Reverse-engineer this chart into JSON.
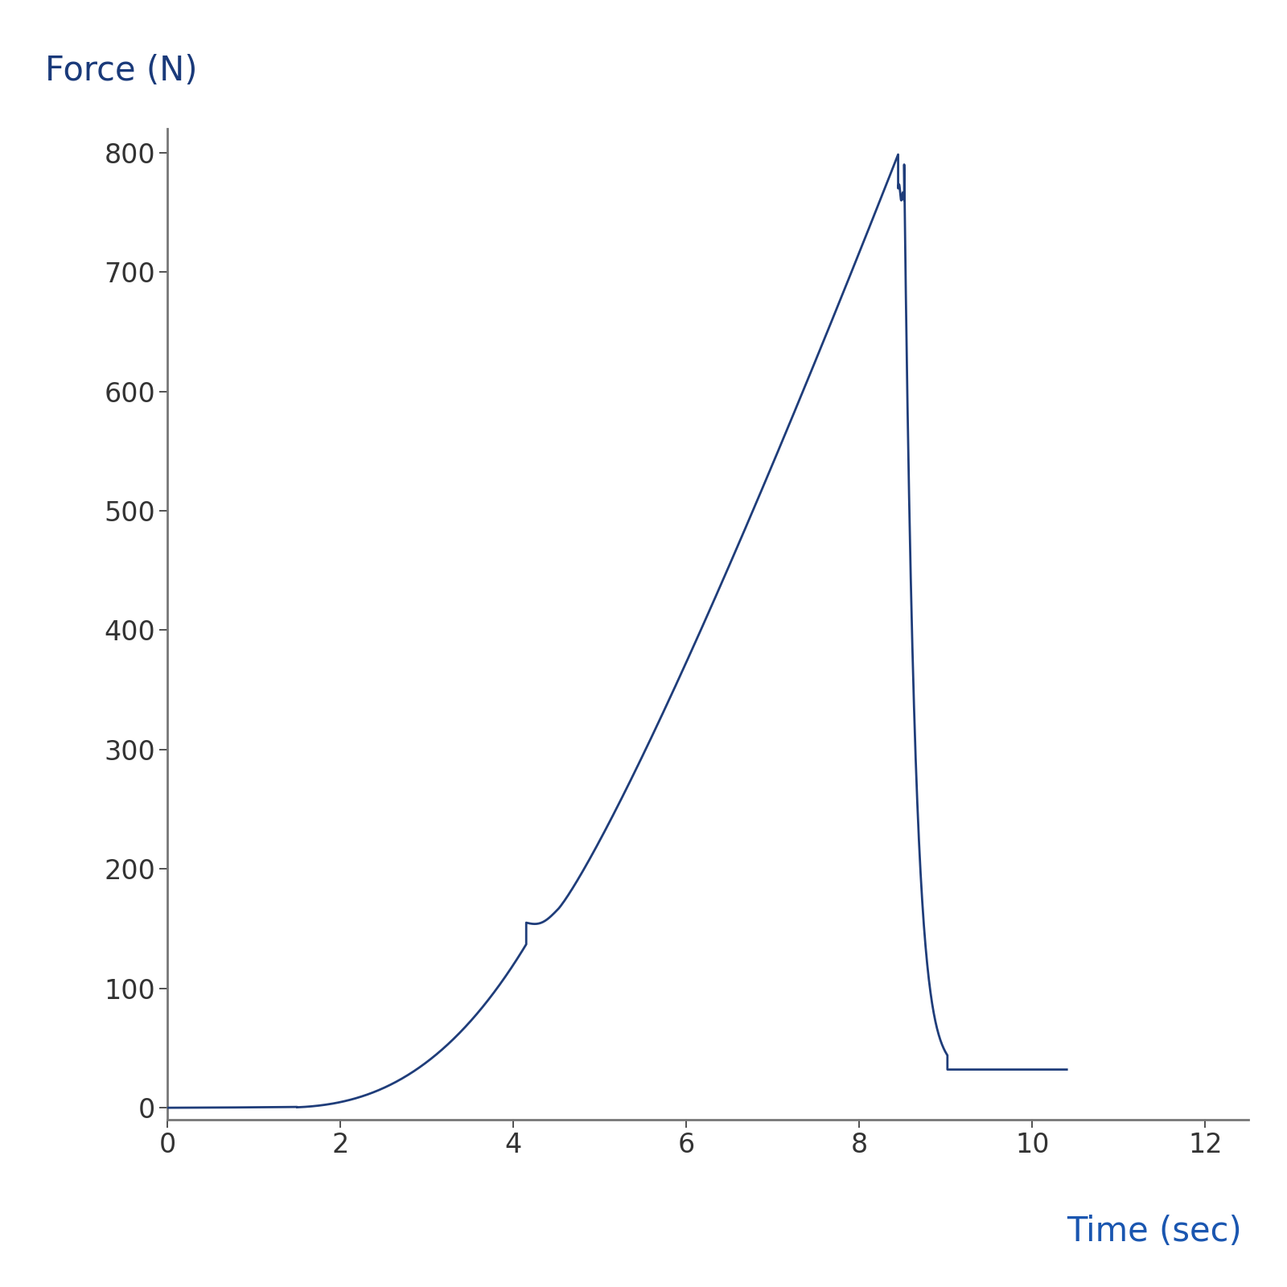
{
  "ylabel": "Force (N)",
  "xlabel": "Time (sec)",
  "ylabel_color": "#1a3a7a",
  "xlabel_color": "#1a56b0",
  "line_color": "#1f3d7a",
  "background_color": "#ffffff",
  "xlim": [
    0,
    12.5
  ],
  "ylim": [
    -10,
    820
  ],
  "xticks": [
    0,
    2,
    4,
    6,
    8,
    10,
    12
  ],
  "yticks": [
    0,
    100,
    200,
    300,
    400,
    500,
    600,
    700,
    800
  ],
  "tick_color": "#333333",
  "axis_color": "#777777",
  "ylabel_fontsize": 30,
  "xlabel_fontsize": 30,
  "tick_fontsize": 24,
  "line_width": 2.0
}
